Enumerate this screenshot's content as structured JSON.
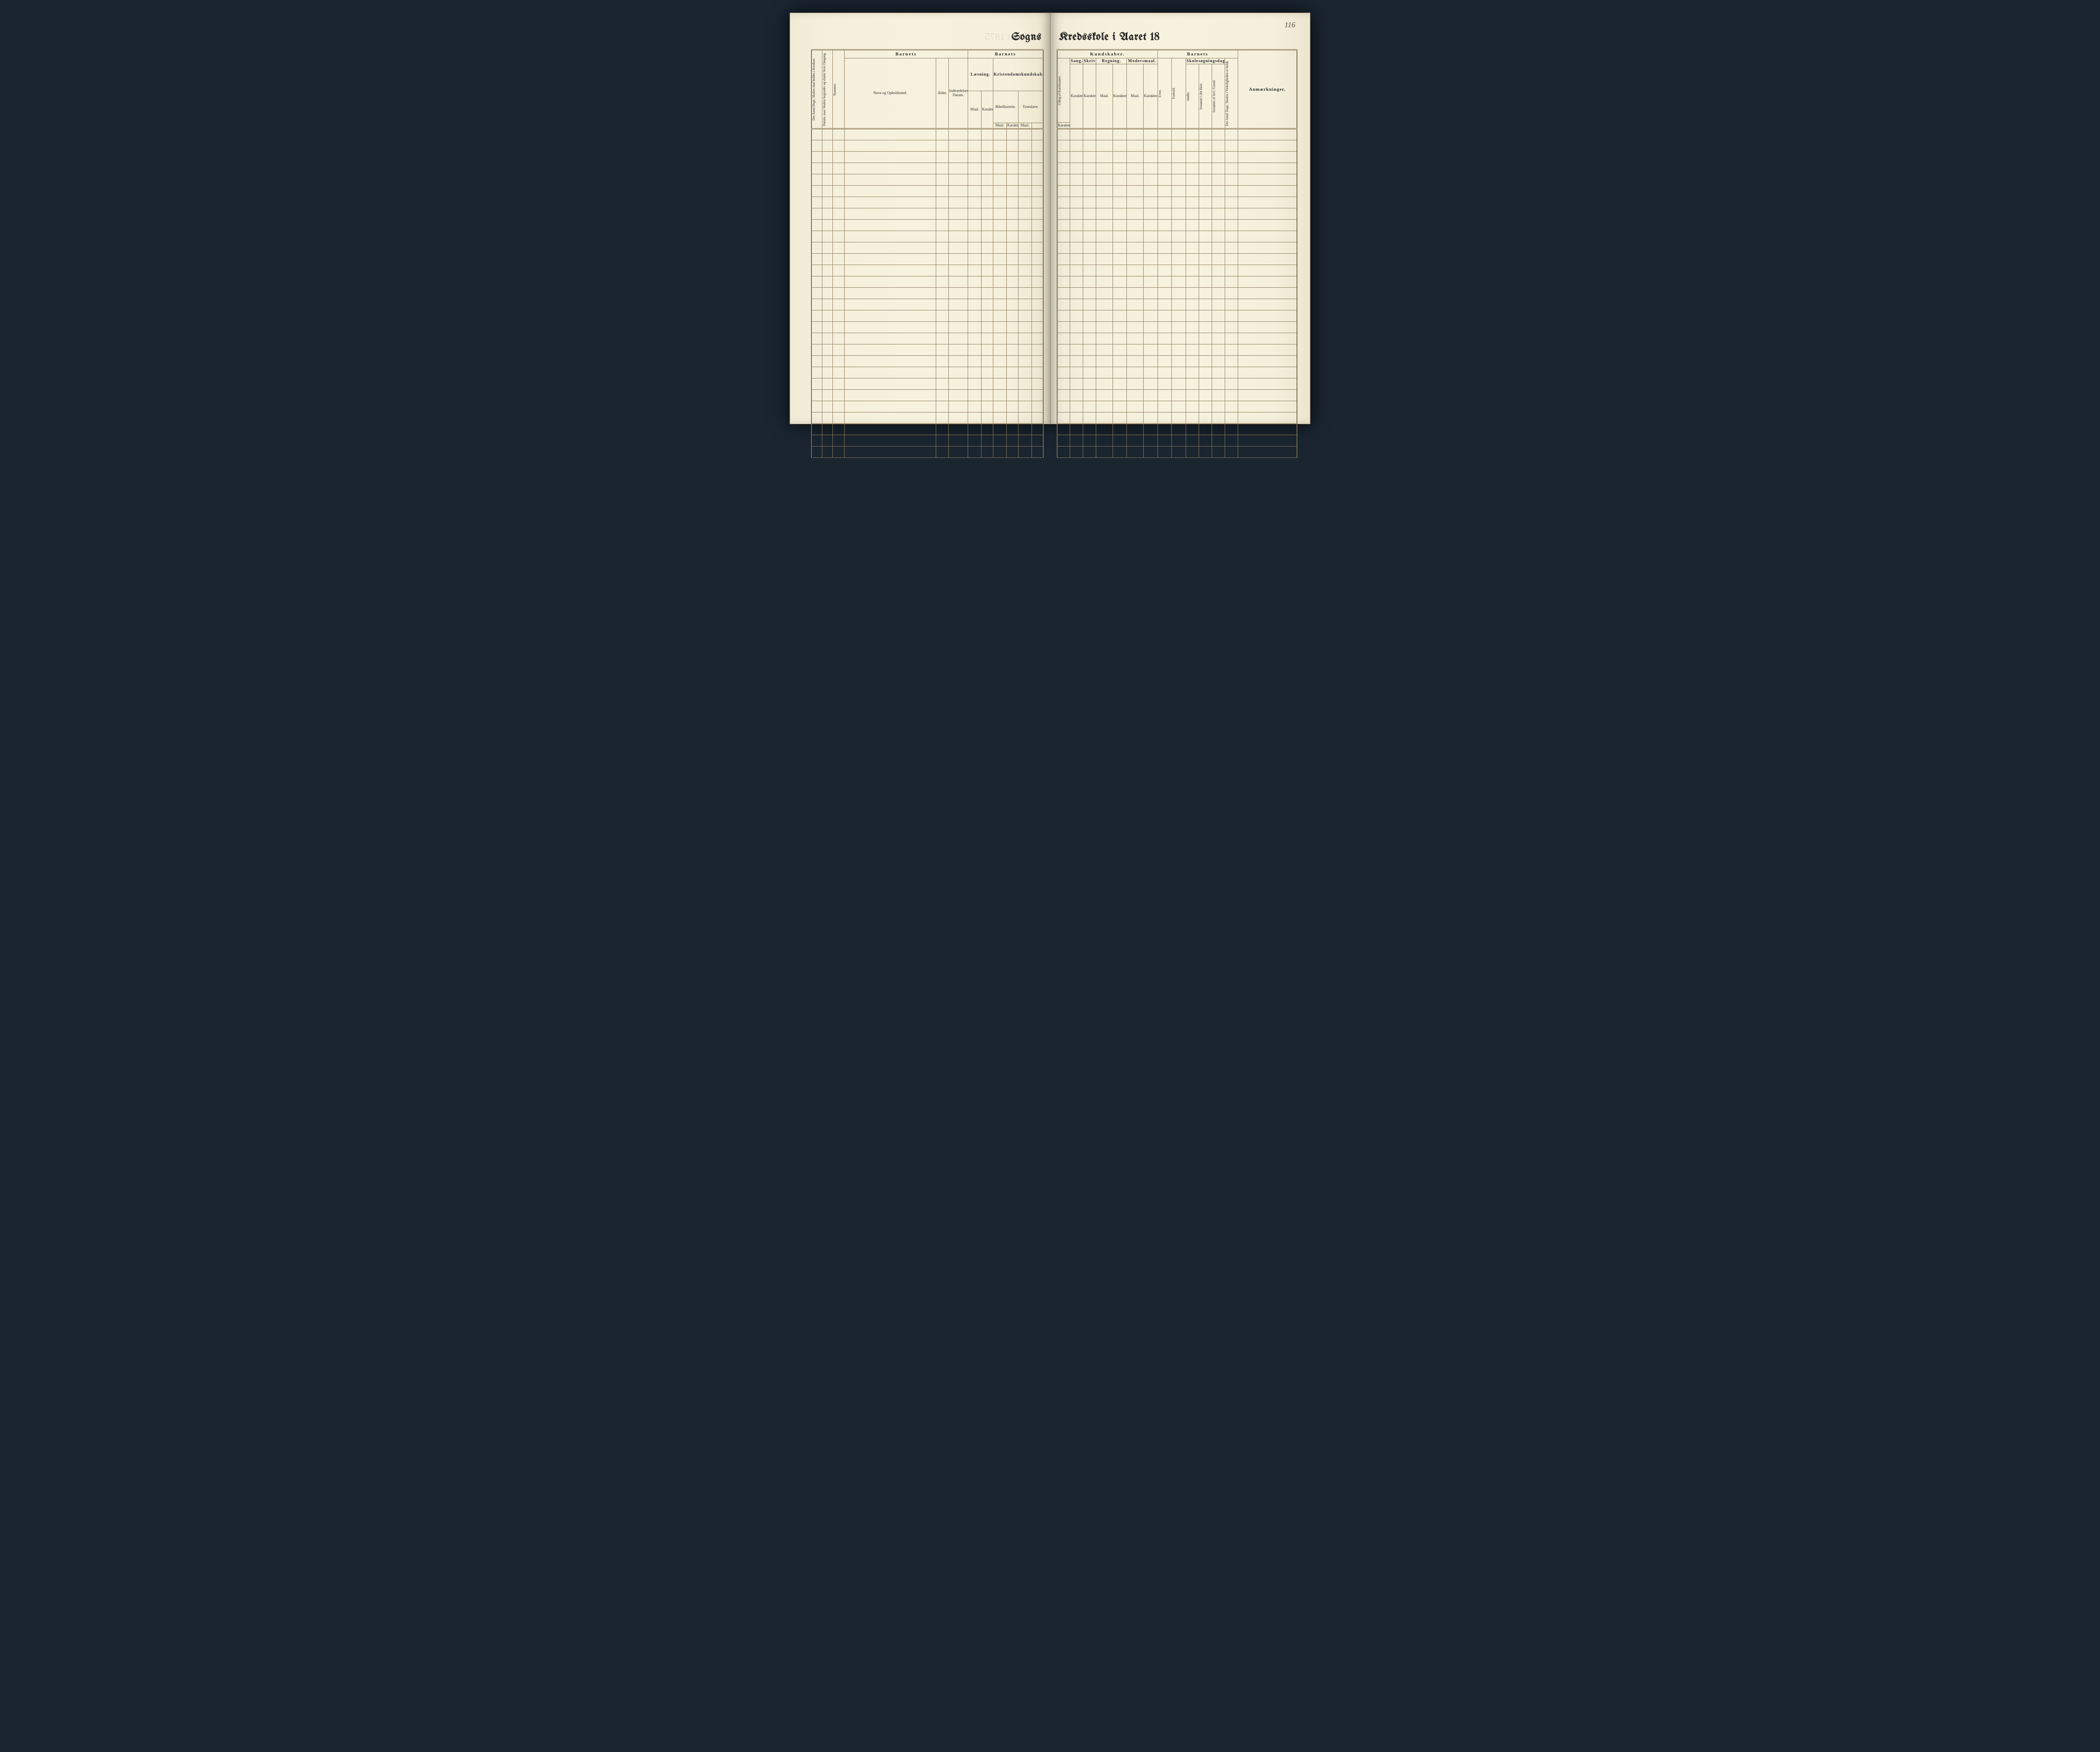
{
  "page_number": "116",
  "title_left": "Sogns",
  "title_right": "Kredsskole i Aaret 18",
  "bleed_through_left": "e i Aaret 1875",
  "row_count": 29,
  "header": {
    "barnets": "Barnets",
    "kundskaber": "Kundskaber.",
    "anmaerkninger": "Anmærkninger.",
    "antal_dage_skolen": "Det Antal Dage, Skolen skal holdes i Kredsen.",
    "datum_skolen": "Datum, naar Skolen begynder og slutter hver Omgang.",
    "nummer": "Nummer.",
    "navn": "Navn og Opholdssted.",
    "alder": "Alder.",
    "indtraedelses": "Indtrædelses-Datum.",
    "laesning": "Læsning.",
    "kristendom": "Kristendomskundskab.",
    "bibelhistorie": "Bibelhistorie.",
    "troeslare": "Troeslære.",
    "udtog": "Udtog af Katekismen.",
    "sang": "Sang.",
    "skrivning": "Skrivning.",
    "regning": "Regning.",
    "modersmaal": "Modersmaal.",
    "evne": "Evne.",
    "forhold": "Forhold.",
    "skolesogning": "Skolesøgningsdage.",
    "modte": "mødte.",
    "forsomte_hele": "forsømte i det Hele.",
    "forsomte_lovl": "forsømte af lovl. Grund.",
    "antal_dage_virk": "Det Antal Dage, Skolen i Virkeligheden er holdt.",
    "maal": "Maal.",
    "karakter": "Karakter.",
    "karakter_s": "Karakter"
  },
  "colors": {
    "page_bg": "#f5f0dc",
    "rule": "#8a7a5a",
    "ink": "#2a2a2a",
    "cover": "#1a2530"
  }
}
